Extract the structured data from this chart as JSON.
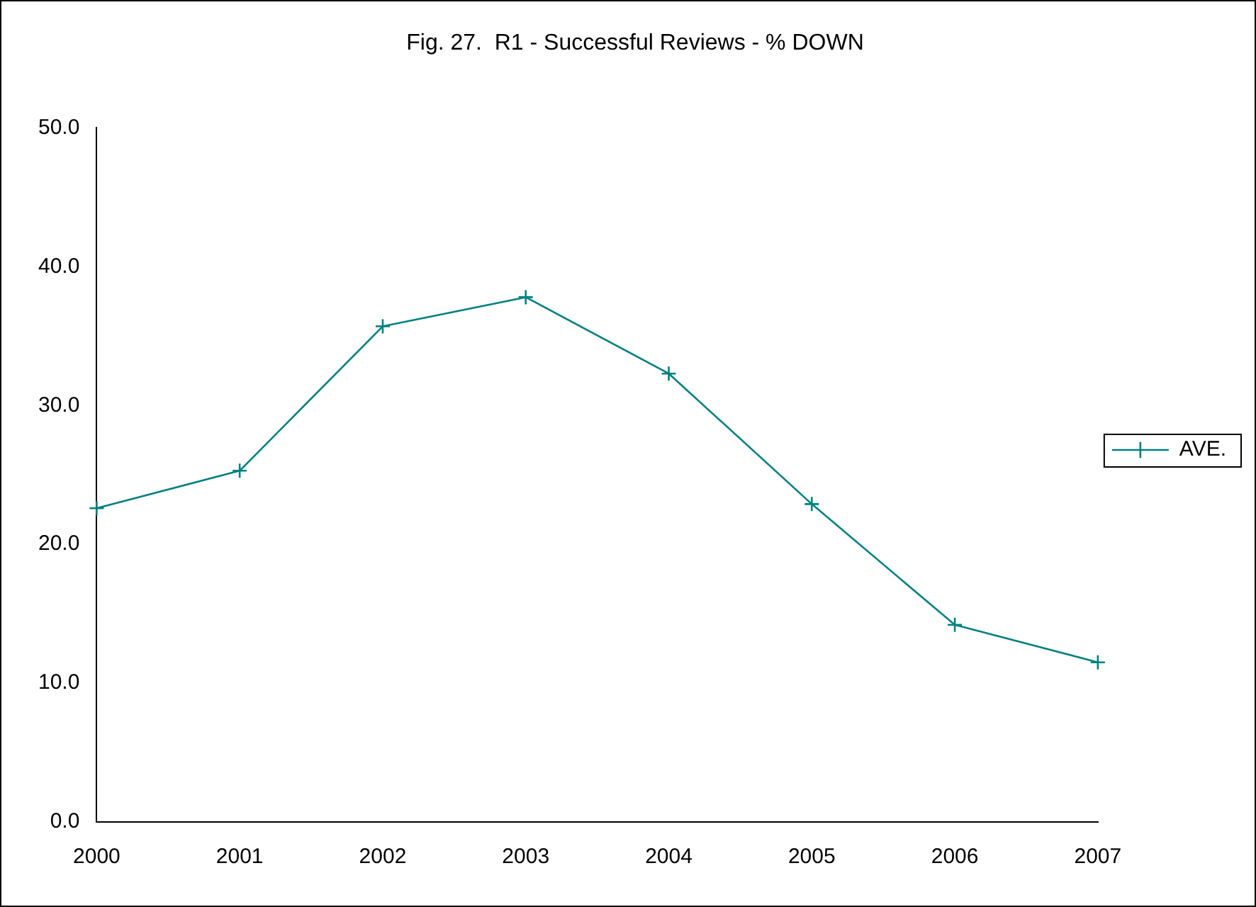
{
  "chart_data": {
    "type": "line",
    "title": "Fig. 27.  R1 - Successful Reviews - % DOWN",
    "categories": [
      "2000",
      "2001",
      "2002",
      "2003",
      "2004",
      "2005",
      "2006",
      "2007"
    ],
    "series": [
      {
        "name": "AVE.",
        "color": "#008080",
        "values": [
          22.6,
          25.3,
          35.7,
          37.8,
          32.3,
          22.9,
          14.2,
          11.5
        ]
      }
    ],
    "ylim": [
      0,
      50
    ],
    "yticks": [
      {
        "value": 0,
        "label": "0.0"
      },
      {
        "value": 10,
        "label": "10.0"
      },
      {
        "value": 20,
        "label": "20.0"
      },
      {
        "value": 30,
        "label": "30.0"
      },
      {
        "value": 40,
        "label": "40.0"
      },
      {
        "value": 50,
        "label": "50.0"
      }
    ],
    "grid": false,
    "legend": "right",
    "marker": "cross",
    "line_style": "solid"
  }
}
